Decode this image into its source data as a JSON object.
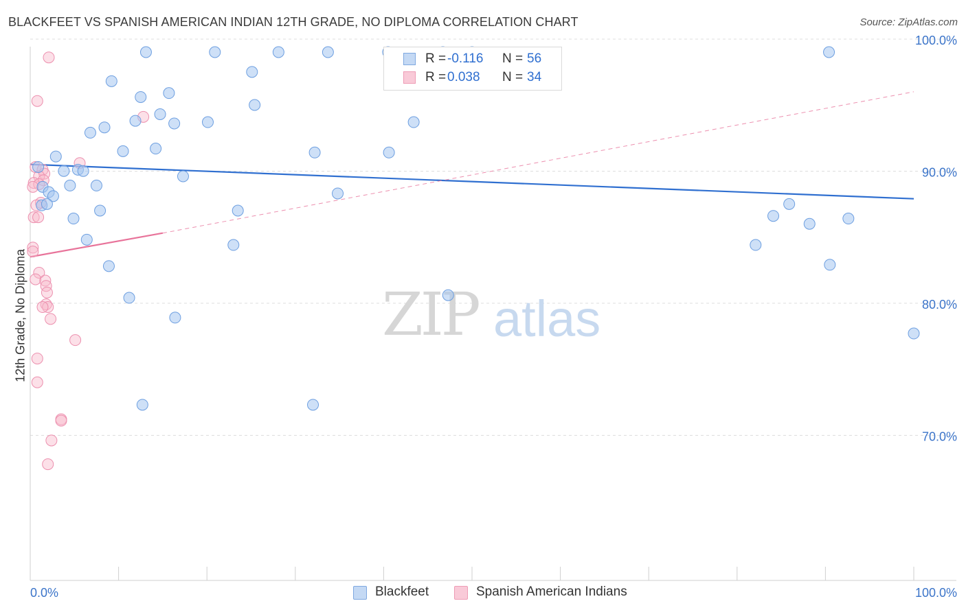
{
  "title": "BLACKFEET VS SPANISH AMERICAN INDIAN 12TH GRADE, NO DIPLOMA CORRELATION CHART",
  "source": "Source: ZipAtlas.com",
  "watermark": {
    "zip": "ZIP",
    "atlas": "atlas"
  },
  "legend": [
    {
      "r_label": "R =",
      "r_value": "-0.116",
      "n_label": "N =",
      "n_value": "56"
    },
    {
      "r_label": "R =",
      "r_value": "0.038",
      "n_label": "N =",
      "n_value": "34"
    }
  ],
  "chart_data": {
    "type": "scatter",
    "title": "BLACKFEET VS SPANISH AMERICAN INDIAN 12TH GRADE, NO DIPLOMA CORRELATION CHART",
    "xlabel": "",
    "ylabel": "12th Grade, No Diploma",
    "xlim": [
      0,
      100
    ],
    "ylim": [
      60,
      100
    ],
    "x_tick_labels": [
      "0.0%",
      "100.0%"
    ],
    "y_ticks": [
      70,
      80,
      90,
      100
    ],
    "y_tick_labels": [
      "70.0%",
      "80.0%",
      "90.0%",
      "100.0%"
    ],
    "grid": true,
    "series": [
      {
        "name": "Blackfeet",
        "color": "#8ab4e8",
        "line_color": "#2f6fd0",
        "trend": {
          "x": [
            0,
            100
          ],
          "y": [
            91.5,
            88.9
          ],
          "dashed_extension": false
        },
        "points": [
          [
            13.1,
            100.0
          ],
          [
            20.9,
            100.0
          ],
          [
            28.1,
            100.0
          ],
          [
            33.7,
            100.0
          ],
          [
            40.5,
            100.0
          ],
          [
            46.7,
            100.0
          ],
          [
            50.0,
            100.0
          ],
          [
            90.4,
            100.0
          ],
          [
            25.1,
            98.5
          ],
          [
            9.2,
            97.8
          ],
          [
            15.7,
            96.9
          ],
          [
            12.5,
            96.6
          ],
          [
            25.4,
            96.0
          ],
          [
            11.9,
            94.8
          ],
          [
            16.3,
            94.6
          ],
          [
            14.7,
            95.3
          ],
          [
            8.4,
            94.3
          ],
          [
            20.1,
            94.7
          ],
          [
            6.8,
            93.9
          ],
          [
            43.4,
            94.7
          ],
          [
            10.5,
            92.5
          ],
          [
            14.2,
            92.7
          ],
          [
            32.2,
            92.4
          ],
          [
            40.6,
            92.4
          ],
          [
            2.9,
            92.1
          ],
          [
            0.9,
            91.3
          ],
          [
            3.8,
            91.0
          ],
          [
            5.4,
            91.1
          ],
          [
            6.0,
            91.0
          ],
          [
            17.3,
            90.6
          ],
          [
            1.4,
            89.8
          ],
          [
            2.1,
            89.4
          ],
          [
            4.5,
            89.9
          ],
          [
            7.5,
            89.9
          ],
          [
            2.6,
            89.1
          ],
          [
            34.8,
            89.3
          ],
          [
            1.3,
            88.4
          ],
          [
            1.9,
            88.5
          ],
          [
            7.9,
            88.0
          ],
          [
            23.5,
            88.0
          ],
          [
            4.9,
            87.4
          ],
          [
            85.9,
            88.5
          ],
          [
            84.1,
            87.6
          ],
          [
            88.2,
            87.0
          ],
          [
            92.6,
            87.4
          ],
          [
            6.4,
            85.8
          ],
          [
            23.0,
            85.4
          ],
          [
            82.1,
            85.4
          ],
          [
            8.9,
            83.8
          ],
          [
            90.5,
            83.9
          ],
          [
            11.2,
            81.4
          ],
          [
            47.3,
            81.6
          ],
          [
            16.4,
            79.9
          ],
          [
            100.0,
            78.7
          ],
          [
            12.7,
            73.3
          ],
          [
            32.0,
            73.3
          ]
        ]
      },
      {
        "name": "Spanish American Indians",
        "color": "#f4a6bd",
        "line_color": "#e8739a",
        "trend": {
          "x": [
            0,
            15
          ],
          "y": [
            84.5,
            86.3
          ],
          "dashed_extension": true,
          "dashed_to": [
            100,
            97.0
          ]
        },
        "points": [
          [
            2.1,
            99.6
          ],
          [
            0.8,
            96.3
          ],
          [
            12.8,
            95.1
          ],
          [
            5.6,
            91.6
          ],
          [
            0.6,
            91.3
          ],
          [
            1.4,
            91.1
          ],
          [
            1.6,
            90.8
          ],
          [
            1.0,
            90.6
          ],
          [
            1.5,
            90.3
          ],
          [
            0.4,
            90.1
          ],
          [
            1.0,
            90.0
          ],
          [
            0.3,
            89.8
          ],
          [
            1.2,
            88.6
          ],
          [
            0.7,
            88.4
          ],
          [
            0.4,
            87.5
          ],
          [
            0.9,
            87.5
          ],
          [
            0.3,
            85.2
          ],
          [
            0.3,
            84.9
          ],
          [
            1.0,
            83.3
          ],
          [
            0.6,
            82.8
          ],
          [
            1.7,
            82.7
          ],
          [
            1.8,
            82.3
          ],
          [
            1.9,
            81.8
          ],
          [
            1.8,
            80.9
          ],
          [
            2.0,
            80.7
          ],
          [
            1.4,
            80.7
          ],
          [
            2.3,
            79.8
          ],
          [
            5.1,
            78.2
          ],
          [
            0.8,
            76.8
          ],
          [
            0.8,
            75.0
          ],
          [
            3.5,
            72.2
          ],
          [
            3.5,
            72.1
          ],
          [
            2.4,
            70.6
          ],
          [
            2.0,
            68.8
          ]
        ]
      }
    ]
  }
}
